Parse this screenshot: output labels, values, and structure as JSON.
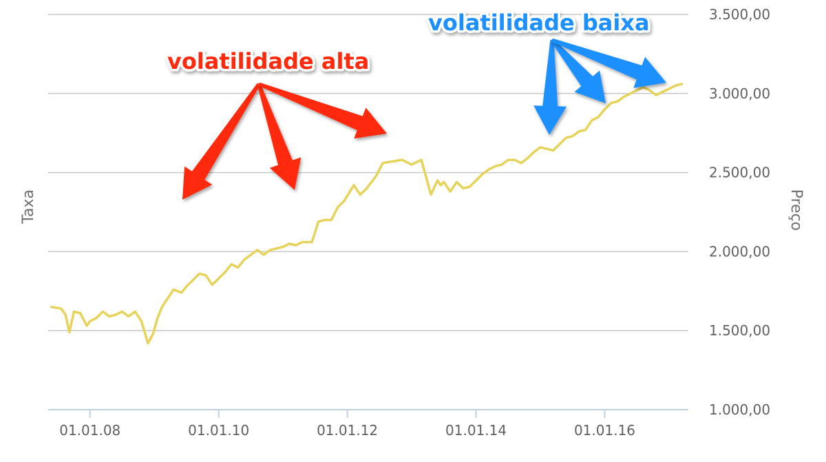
{
  "chart_data": {
    "type": "line",
    "xlabel": "",
    "ylabel_left": "Taxa",
    "ylabel_right": "Preço",
    "ylim": [
      1000,
      3500
    ],
    "yticks": [
      1000,
      1500,
      2000,
      2500,
      3000,
      3500
    ],
    "ytick_labels": [
      "1.000,00",
      "1.500,00",
      "2.000,00",
      "2.500,00",
      "3.000,00",
      "3.500,00"
    ],
    "xlim": [
      2007.35,
      2017.3
    ],
    "xticks": [
      2008,
      2010,
      2012,
      2014,
      2016
    ],
    "xtick_labels": [
      "01.01.08",
      "01.01.10",
      "01.01.12",
      "01.01.14",
      "01.01.16"
    ],
    "grid": true,
    "series": [
      {
        "color": "#e6d35a",
        "x": [
          2007.4,
          2007.55,
          2007.62,
          2007.68,
          2007.75,
          2007.85,
          2007.95,
          2008.0,
          2008.1,
          2008.2,
          2008.3,
          2008.4,
          2008.5,
          2008.6,
          2008.7,
          2008.8,
          2008.9,
          2008.98,
          2009.05,
          2009.12,
          2009.2,
          2009.3,
          2009.42,
          2009.5,
          2009.6,
          2009.7,
          2009.8,
          2009.9,
          2010.0,
          2010.1,
          2010.2,
          2010.3,
          2010.4,
          2010.5,
          2010.6,
          2010.7,
          2010.8,
          2010.9,
          2011.0,
          2011.1,
          2011.2,
          2011.3,
          2011.45,
          2011.55,
          2011.65,
          2011.75,
          2011.85,
          2011.95,
          2012.1,
          2012.2,
          2012.3,
          2012.45,
          2012.55,
          2012.7,
          2012.85,
          2013.0,
          2013.15,
          2013.3,
          2013.4,
          2013.45,
          2013.5,
          2013.6,
          2013.7,
          2013.8,
          2013.9,
          2014.0,
          2014.1,
          2014.2,
          2014.3,
          2014.4,
          2014.5,
          2014.6,
          2014.7,
          2014.8,
          2014.9,
          2015.0,
          2015.1,
          2015.2,
          2015.3,
          2015.4,
          2015.5,
          2015.6,
          2015.7,
          2015.8,
          2015.9,
          2016.0,
          2016.1,
          2016.2,
          2016.3,
          2016.4,
          2016.5,
          2016.6,
          2016.7,
          2016.8,
          2016.9,
          2017.0,
          2017.1,
          2017.2
        ],
        "y": [
          1650,
          1640,
          1600,
          1490,
          1620,
          1610,
          1530,
          1560,
          1580,
          1620,
          1590,
          1600,
          1620,
          1590,
          1620,
          1560,
          1420,
          1480,
          1580,
          1650,
          1700,
          1760,
          1740,
          1780,
          1820,
          1860,
          1850,
          1790,
          1830,
          1870,
          1920,
          1900,
          1950,
          1980,
          2010,
          1980,
          2010,
          2020,
          2030,
          2050,
          2040,
          2060,
          2060,
          2190,
          2200,
          2200,
          2280,
          2320,
          2420,
          2360,
          2400,
          2480,
          2560,
          2570,
          2580,
          2550,
          2580,
          2360,
          2450,
          2420,
          2440,
          2380,
          2440,
          2400,
          2410,
          2450,
          2490,
          2520,
          2540,
          2550,
          2580,
          2580,
          2560,
          2590,
          2630,
          2660,
          2650,
          2640,
          2680,
          2720,
          2730,
          2760,
          2770,
          2830,
          2850,
          2900,
          2940,
          2950,
          2980,
          3000,
          3020,
          3040,
          3020,
          2990,
          3010,
          3030,
          3050,
          3060
        ]
      }
    ],
    "annotations": [
      {
        "text": "volatilidade alta",
        "color": "#ff2a0a"
      },
      {
        "text": "volatilidade baixa",
        "color": "#1e90ff"
      }
    ]
  }
}
